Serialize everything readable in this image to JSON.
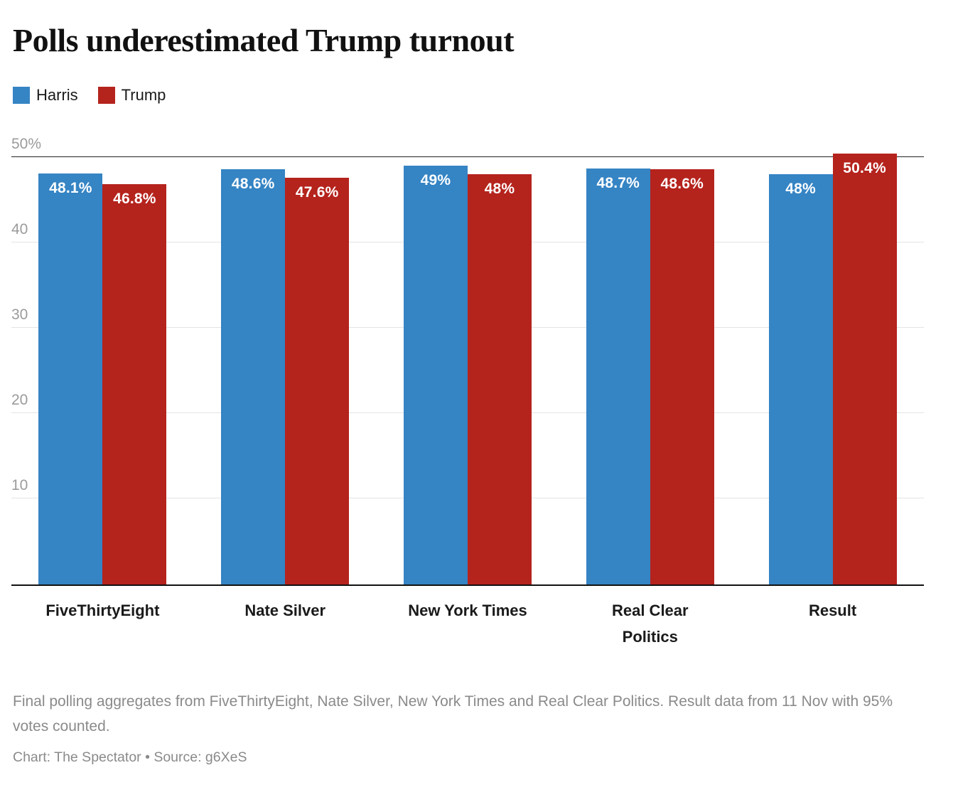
{
  "title": "Polls underestimated Trump turnout",
  "chart_data": {
    "type": "bar",
    "title": "Polls underestimated Trump turnout",
    "categories": [
      "FiveThirtyEight",
      "Nate Silver",
      "New York Times",
      "Real Clear Politics",
      "Result"
    ],
    "series": [
      {
        "name": "Harris",
        "color": "#3584c4",
        "values": [
          48.1,
          48.6,
          49,
          48.7,
          48
        ],
        "labels": [
          "48.1%",
          "48.6%",
          "49%",
          "48.7%",
          "48%"
        ]
      },
      {
        "name": "Trump",
        "color": "#b5231d",
        "values": [
          46.8,
          47.6,
          48,
          48.6,
          50.4
        ],
        "labels": [
          "46.8%",
          "47.6%",
          "48%",
          "48.6%",
          "50.4%"
        ]
      }
    ],
    "xlabel": "",
    "ylabel": "",
    "ylim": [
      0,
      52.7
    ],
    "yticks": [
      {
        "value": 10,
        "label": "10"
      },
      {
        "value": 20,
        "label": "20"
      },
      {
        "value": 30,
        "label": "30"
      },
      {
        "value": 40,
        "label": "40"
      },
      {
        "value": 50,
        "label": "50%"
      }
    ],
    "grid": true,
    "legend_position": "top-left"
  },
  "footer": {
    "note": "Final polling aggregates from FiveThirtyEight, Nate Silver, New York Times and Real Clear Politics. Result data from 11 Nov with 95% votes counted.",
    "credit": "Chart: The Spectator • Source: g6XeS"
  }
}
